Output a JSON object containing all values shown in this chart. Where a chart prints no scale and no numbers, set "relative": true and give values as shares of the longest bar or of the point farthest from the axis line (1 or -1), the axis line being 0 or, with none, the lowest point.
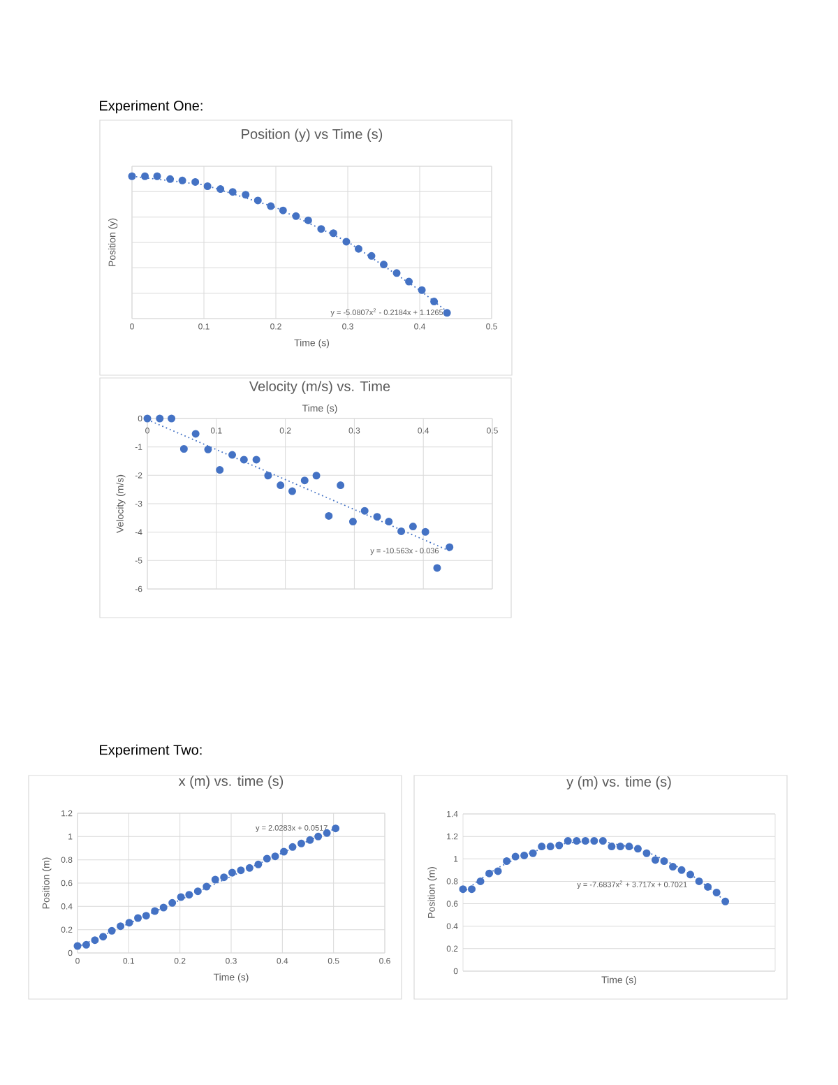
{
  "chart_data": [
    {
      "type": "scatter",
      "title": "Position (y) vs Time (s)",
      "xlabel": "Time (s)",
      "ylabel": "Position (y)",
      "relative": true,
      "tick_labels": "x",
      "grid": true,
      "marker": "circle",
      "x": [
        0,
        0.018,
        0.035,
        0.053,
        0.07,
        0.088,
        0.105,
        0.123,
        0.14,
        0.158,
        0.175,
        0.193,
        0.21,
        0.228,
        0.245,
        0.263,
        0.28,
        0.298,
        0.315,
        0.333,
        0.35,
        0.368,
        0.385,
        0.403,
        0.42,
        0.438
      ],
      "series": [
        {
          "color": "#4472c4",
          "values": [
            1,
            1,
            1,
            0.98,
            0.97,
            0.96,
            0.93,
            0.91,
            0.89,
            0.87,
            0.83,
            0.79,
            0.76,
            0.72,
            0.69,
            0.63,
            0.6,
            0.54,
            0.49,
            0.44,
            0.38,
            0.32,
            0.26,
            0.2,
            0.12,
            0.04
          ]
        },
        {
          "type": "line",
          "color": "#4472c4",
          "line_style": "dotted",
          "marker": "none",
          "x": [
            0,
            0.1,
            0.2,
            0.3,
            0.4,
            0.438
          ],
          "values": [
            1,
            0.94,
            0.78,
            0.54,
            0.2,
            0.05
          ]
        }
      ],
      "xlim": [
        0,
        0.5
      ],
      "xticks": [
        0,
        0.1,
        0.2,
        0.3,
        0.4,
        0.5
      ],
      "annotations": [
        "Experiment One:",
        "y = -5.0807x$^{2}$ - 0.2184x + 1.1265"
      ]
    },
    {
      "type": "scatter",
      "title": "Velocity (m/s) vs. Time",
      "xlabel": "Time (s)",
      "ylabel": "Velocity (m/s)",
      "grid": true,
      "marker": "circle",
      "x": [
        0,
        0.018,
        0.035,
        0.053,
        0.07,
        0.088,
        0.105,
        0.123,
        0.14,
        0.158,
        0.175,
        0.193,
        0.21,
        0.228,
        0.245,
        0.263,
        0.28,
        0.298,
        0.315,
        0.333,
        0.35,
        0.368,
        0.385,
        0.403,
        0.42,
        0.438
      ],
      "series": [
        {
          "color": "#4472c4",
          "values": [
            0,
            0,
            0,
            -1.07,
            -0.54,
            -1.09,
            -1.81,
            -1.28,
            -1.45,
            -1.45,
            -2.01,
            -2.35,
            -2.56,
            -2.18,
            -2.01,
            -3.43,
            -2.35,
            -3.63,
            -3.25,
            -3.46,
            -3.63,
            -3.97,
            -3.8,
            -3.99,
            -5.26,
            -4.53
          ]
        },
        {
          "type": "line",
          "color": "#4472c4",
          "line_style": "dotted",
          "marker": "none",
          "x": [
            0,
            0.438
          ],
          "values": [
            -0.04,
            -4.66
          ]
        }
      ],
      "xlim": [
        0,
        0.5
      ],
      "xticks": [
        0,
        0.1,
        0.2,
        0.3,
        0.4,
        0.5
      ],
      "ylim": [
        -6,
        0
      ],
      "yticks": [
        -6,
        -5,
        -4,
        -3,
        -2,
        -1,
        0
      ],
      "annotations": [
        "y = -10.563x - 0.036"
      ]
    },
    {
      "type": "scatter",
      "title": "x (m) vs. time (s)",
      "xlabel": "Time (s)",
      "ylabel": "Position (m)",
      "grid": true,
      "marker": "circle",
      "x": [
        0,
        0.017,
        0.034,
        0.05,
        0.067,
        0.084,
        0.101,
        0.118,
        0.134,
        0.151,
        0.168,
        0.185,
        0.202,
        0.218,
        0.235,
        0.252,
        0.269,
        0.286,
        0.302,
        0.319,
        0.336,
        0.353,
        0.37,
        0.386,
        0.403,
        0.42,
        0.437,
        0.454,
        0.47,
        0.487,
        0.504
      ],
      "series": [
        {
          "color": "#4472c4",
          "values": [
            0.06,
            0.07,
            0.11,
            0.14,
            0.19,
            0.23,
            0.26,
            0.3,
            0.32,
            0.36,
            0.39,
            0.43,
            0.48,
            0.5,
            0.53,
            0.57,
            0.63,
            0.65,
            0.69,
            0.71,
            0.73,
            0.76,
            0.81,
            0.83,
            0.87,
            0.91,
            0.94,
            0.97,
            1,
            1.03,
            1.07
          ]
        },
        {
          "type": "line",
          "color": "#4472c4",
          "line_style": "dotted",
          "marker": "none",
          "x": [
            0,
            0.504
          ],
          "values": [
            0.05,
            1.07
          ]
        }
      ],
      "xlim": [
        0,
        0.6
      ],
      "xticks": [
        0,
        0.1,
        0.2,
        0.3,
        0.4,
        0.5,
        0.6
      ],
      "ylim": [
        0,
        1.2
      ],
      "yticks": [
        0,
        0.2,
        0.4,
        0.6,
        0.8,
        1,
        1.2
      ],
      "annotations": [
        "Experiment Two:",
        "y = 2.0283x + 0.0517"
      ]
    },
    {
      "type": "scatter",
      "title": "y (m) vs. time (s)",
      "xlabel": "Time (s)",
      "ylabel": "Position (m)",
      "grid": "y",
      "marker": "circle",
      "tick_labels": "y",
      "categories": [
        null,
        null,
        null,
        null,
        null,
        null,
        null,
        null,
        null,
        null,
        null,
        null,
        null,
        null,
        null,
        null,
        null,
        null,
        null,
        null,
        null,
        null,
        null,
        null,
        null,
        null,
        null,
        null,
        null,
        null,
        null
      ],
      "series": [
        {
          "color": "#4472c4",
          "values": [
            0.73,
            0.73,
            0.8,
            0.87,
            0.89,
            0.98,
            1.02,
            1.03,
            1.05,
            1.11,
            1.11,
            1.12,
            1.16,
            1.16,
            1.16,
            1.16,
            1.16,
            1.11,
            1.11,
            1.11,
            1.09,
            1.05,
            0.99,
            0.98,
            0.93,
            0.9,
            0.86,
            0.8,
            0.75,
            0.7,
            0.62
          ]
        },
        {
          "type": "line",
          "color": "#4472c4",
          "line_style": "dotted",
          "marker": "none",
          "values": [
            0.7,
            0.76,
            0.82,
            0.87,
            0.92,
            0.96,
            1,
            1.03,
            1.06,
            1.09,
            1.11,
            1.13,
            1.14,
            1.15,
            1.15,
            1.15,
            1.15,
            1.14,
            1.12,
            1.11,
            1.08,
            1.06,
            1.03,
            0.99,
            0.95,
            0.91,
            0.86,
            0.81,
            0.75,
            0.69,
            0.62
          ]
        }
      ],
      "ylim": [
        0,
        1.4
      ],
      "yticks": [
        0,
        0.2,
        0.4,
        0.6,
        0.8,
        1,
        1.2,
        1.4
      ],
      "annotations": [
        "y = -7.6837x$^{2}$ + 3.717x + 0.7021"
      ]
    }
  ]
}
